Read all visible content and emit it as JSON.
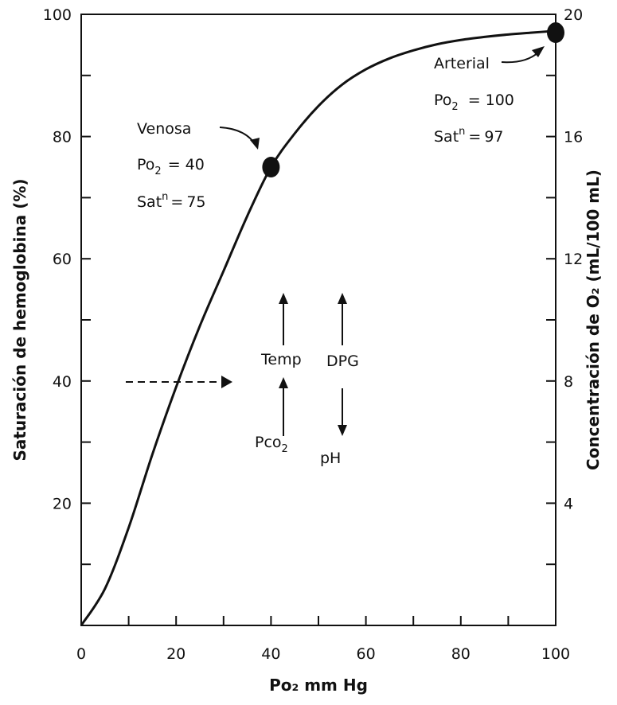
{
  "chart_data": {
    "type": "line",
    "xlabel": "Po₂ mm Hg",
    "ylabel": "Saturación de hemoglobina (%)",
    "y2label": "Concentración de O₂ (mL/100 mL)",
    "xlim": [
      0,
      100
    ],
    "ylim": [
      0,
      100
    ],
    "y2lim": [
      0,
      20
    ],
    "x_ticks": [
      0,
      20,
      40,
      60,
      80,
      100
    ],
    "y_ticks": [
      20,
      40,
      60,
      80,
      100
    ],
    "y2_ticks": [
      4,
      8,
      12,
      16,
      20
    ],
    "grid": false,
    "series": [
      {
        "x": [
          0,
          5,
          10,
          15,
          20,
          25,
          30,
          35,
          40,
          45,
          50,
          55,
          60,
          65,
          70,
          75,
          80,
          85,
          90,
          95,
          100
        ],
        "y": [
          0,
          6,
          16,
          28,
          39,
          49,
          58,
          67,
          75,
          80.5,
          85,
          88.5,
          91,
          92.8,
          94.1,
          95.1,
          95.8,
          96.3,
          96.7,
          97,
          97.3
        ]
      }
    ],
    "points": [
      {
        "label": "Venosa",
        "x": 40,
        "y": 75,
        "po2": "40",
        "sat": "75"
      },
      {
        "label": "Arterial",
        "x": 100,
        "y": 97,
        "po2": "100",
        "sat": "97"
      }
    ],
    "annotations": {
      "temp": "Temp",
      "dpg": "DPG",
      "pco": "Pco",
      "ph": "pH",
      "po2_main": "Po",
      "sat_main": "Sat",
      "sup_n": "n",
      "sub_2": "2",
      "eq": "="
    }
  }
}
